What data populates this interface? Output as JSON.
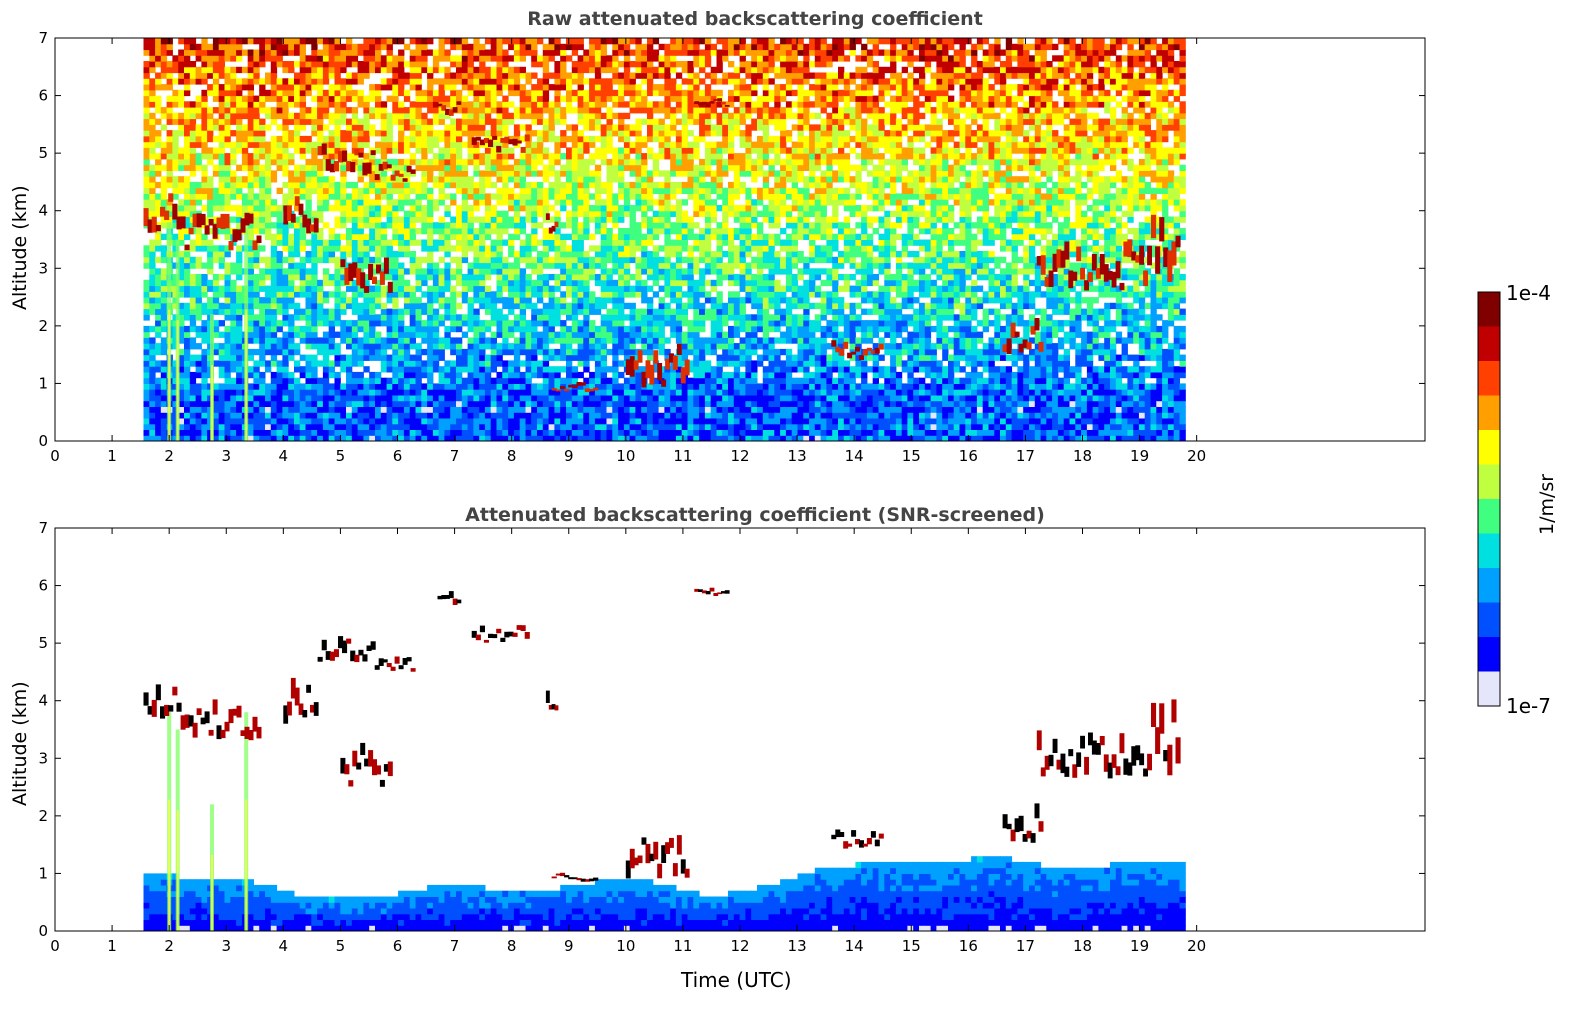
{
  "chart_data": [
    {
      "type": "heatmap",
      "title": "Raw attenuated backscattering coefficient",
      "xlabel": "",
      "ylabel": "Altitude (km)",
      "xlim": [
        0,
        24
      ],
      "ylim": [
        0,
        7
      ],
      "xticks": [
        "0",
        "1",
        "2",
        "3",
        "4",
        "5",
        "6",
        "7",
        "8",
        "9",
        "10",
        "11",
        "12",
        "13",
        "14",
        "15",
        "16",
        "17",
        "18",
        "19",
        "20"
      ],
      "yticks": [
        "0",
        "1",
        "2",
        "3",
        "4",
        "5",
        "6",
        "7"
      ],
      "data_time_range": [
        1.55,
        19.8
      ],
      "screened": false,
      "cloud_layers": [
        {
          "t": [
            1.55,
            2.2
          ],
          "alt": [
            3.6,
            4.3
          ]
        },
        {
          "t": [
            2.2,
            3.6
          ],
          "alt": [
            3.3,
            3.9
          ]
        },
        {
          "t": [
            4.0,
            4.6
          ],
          "alt": [
            3.6,
            4.4
          ]
        },
        {
          "t": [
            4.6,
            5.6
          ],
          "alt": [
            4.6,
            5.1
          ]
        },
        {
          "t": [
            5.6,
            6.3
          ],
          "alt": [
            4.5,
            4.8
          ]
        },
        {
          "t": [
            5.0,
            5.9
          ],
          "alt": [
            2.5,
            3.2
          ]
        },
        {
          "t": [
            6.7,
            7.1
          ],
          "alt": [
            5.6,
            5.9
          ]
        },
        {
          "t": [
            7.3,
            8.3
          ],
          "alt": [
            5.0,
            5.3
          ]
        },
        {
          "t": [
            11.2,
            11.8
          ],
          "alt": [
            5.8,
            5.95
          ]
        },
        {
          "t": [
            8.6,
            8.8
          ],
          "alt": [
            3.6,
            4.1
          ]
        },
        {
          "t": [
            8.7,
            9.5
          ],
          "alt": [
            0.85,
            1.0
          ]
        },
        {
          "t": [
            10.0,
            11.1
          ],
          "alt": [
            0.9,
            1.7
          ]
        },
        {
          "t": [
            13.6,
            14.5
          ],
          "alt": [
            1.4,
            1.7
          ]
        },
        {
          "t": [
            16.6,
            17.3
          ],
          "alt": [
            1.5,
            2.1
          ]
        },
        {
          "t": [
            17.2,
            19.2
          ],
          "alt": [
            2.6,
            3.4
          ]
        },
        {
          "t": [
            19.2,
            19.7
          ],
          "alt": [
            2.7,
            4.0
          ]
        }
      ],
      "plumes": [
        {
          "t": 2.0,
          "alt_top": 3.8
        },
        {
          "t": 2.15,
          "alt_top": 3.5
        },
        {
          "t": 2.75,
          "alt_top": 2.2
        },
        {
          "t": 3.35,
          "alt_top": 3.8
        }
      ]
    },
    {
      "type": "heatmap",
      "title": "Attenuated backscattering coefficient (SNR-screened)",
      "xlabel": "Time (UTC)",
      "ylabel": "Altitude (km)",
      "xlim": [
        0,
        24
      ],
      "ylim": [
        0,
        7
      ],
      "xticks": [
        "0",
        "1",
        "2",
        "3",
        "4",
        "5",
        "6",
        "7",
        "8",
        "9",
        "10",
        "11",
        "12",
        "13",
        "14",
        "15",
        "16",
        "17",
        "18",
        "19",
        "20"
      ],
      "yticks": [
        "0",
        "1",
        "2",
        "3",
        "4",
        "5",
        "6",
        "7"
      ],
      "data_time_range": [
        1.55,
        19.8
      ],
      "screened": true,
      "boundary_layer_top_km": [
        [
          1.55,
          1.0
        ],
        [
          3.5,
          0.85
        ],
        [
          4.5,
          0.55
        ],
        [
          5.5,
          0.55
        ],
        [
          6.5,
          0.75
        ],
        [
          7.5,
          0.75
        ],
        [
          8.5,
          0.7
        ],
        [
          9.5,
          0.85
        ],
        [
          10.5,
          0.85
        ],
        [
          11.5,
          0.6
        ],
        [
          12.5,
          0.8
        ],
        [
          13.5,
          1.1
        ],
        [
          14.5,
          1.2
        ],
        [
          15.5,
          1.2
        ],
        [
          16.5,
          1.3
        ],
        [
          17.5,
          1.1
        ],
        [
          18.5,
          1.15
        ],
        [
          19.8,
          1.2
        ]
      ]
    }
  ],
  "colorbar": {
    "max_label": "1e-4",
    "min_label": "1e-7",
    "unit": "1/m/sr",
    "colors": [
      "#e6e6fa",
      "#0000ff",
      "#0050ff",
      "#00a0ff",
      "#00e0e0",
      "#40ff80",
      "#c0ff40",
      "#ffff00",
      "#ffa000",
      "#ff4000",
      "#c00000",
      "#800000"
    ]
  }
}
